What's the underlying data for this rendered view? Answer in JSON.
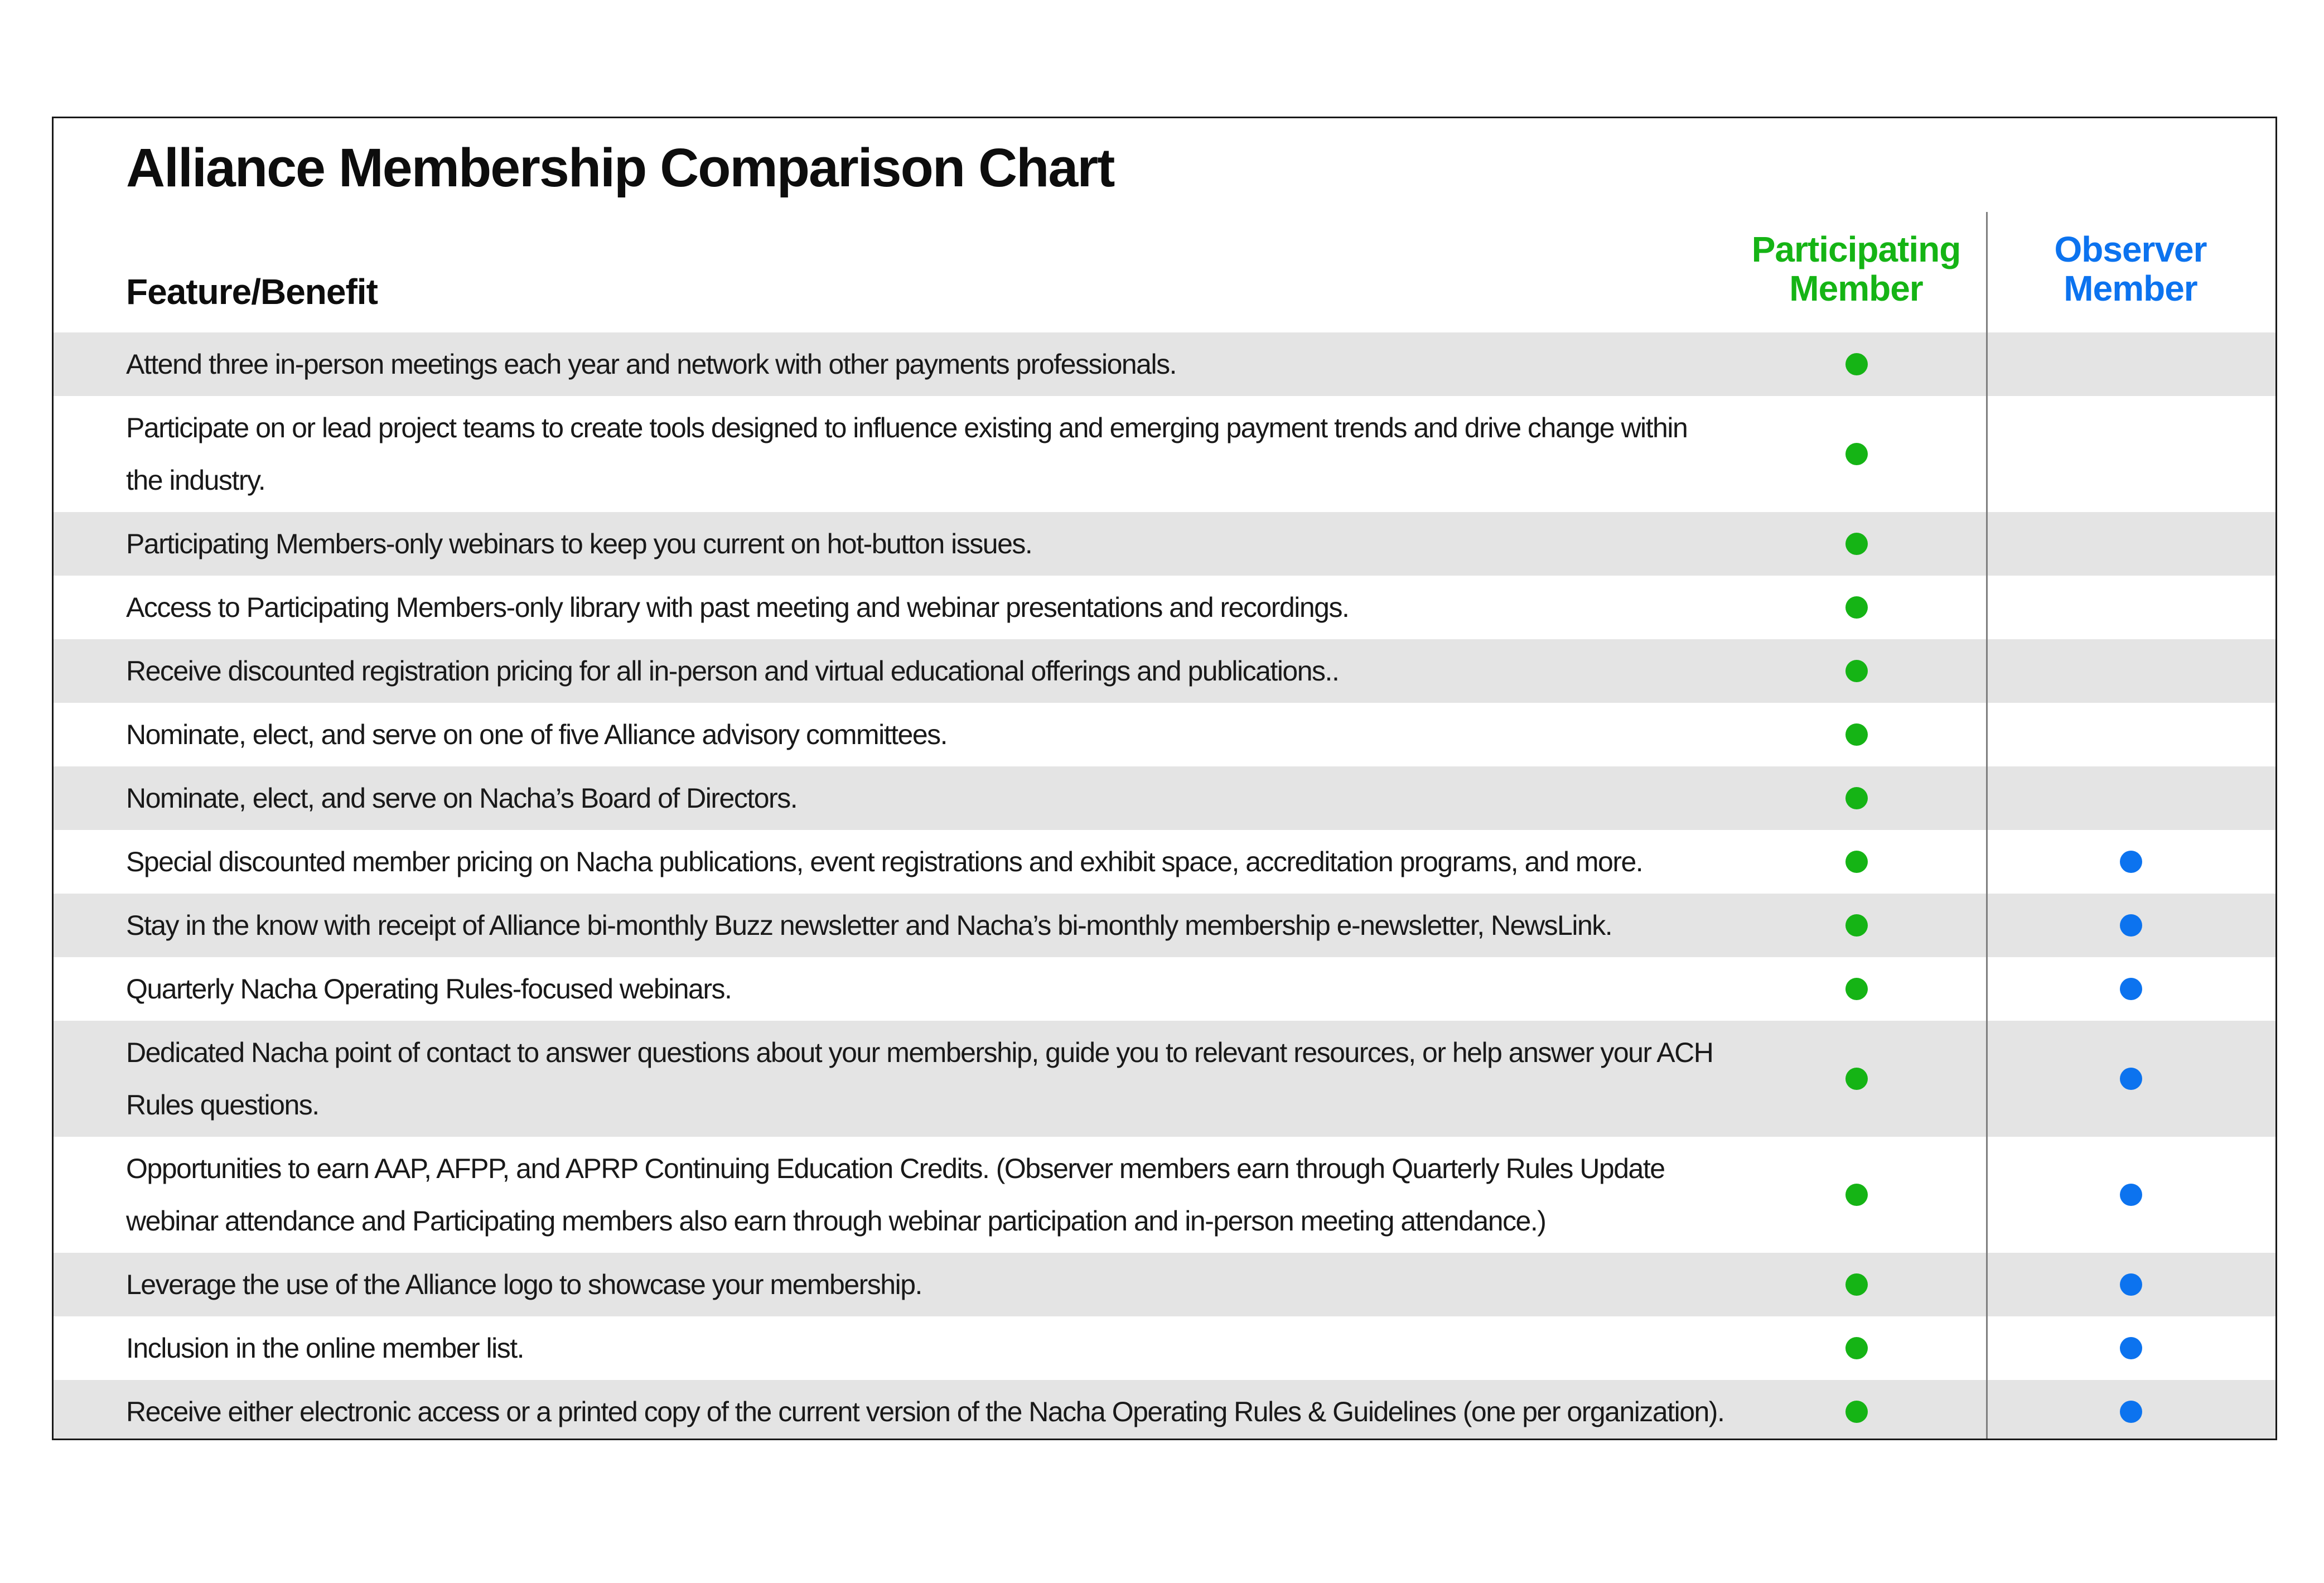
{
  "table": {
    "title": "Alliance Membership Comparison Chart",
    "feature_header": "Feature/Benefit",
    "columns": [
      {
        "id": "participating",
        "label": "Participating Member",
        "color": "#15b415"
      },
      {
        "id": "observer",
        "label": "Observer Member",
        "color": "#0c73ef"
      }
    ],
    "rows": [
      {
        "feature": "Attend three in-person meetings each year and network with other payments professionals.",
        "participating": true,
        "observer": false
      },
      {
        "feature": "Participate on or lead project teams to create tools designed to influence existing and emerging payment trends and drive change within the industry.",
        "participating": true,
        "observer": false
      },
      {
        "feature": "Participating Members-only webinars to keep you current on hot-button issues.",
        "participating": true,
        "observer": false
      },
      {
        "feature": "Access to Participating Members-only library with past meeting and webinar presentations and recordings.",
        "participating": true,
        "observer": false
      },
      {
        "feature": "Receive discounted registration pricing for all in-person and virtual educational offerings and publications..",
        "participating": true,
        "observer": false
      },
      {
        "feature": "Nominate, elect, and serve on one of five Alliance advisory committees.",
        "participating": true,
        "observer": false
      },
      {
        "feature": "Nominate, elect, and serve on Nacha’s Board of Directors.",
        "participating": true,
        "observer": false
      },
      {
        "feature": "Special discounted member pricing on Nacha publications, event registrations and exhibit space, accreditation programs, and more.",
        "participating": true,
        "observer": true
      },
      {
        "feature": "Stay in the know with receipt of Alliance bi-monthly Buzz newsletter and Nacha’s bi-monthly membership e-newsletter, NewsLink.",
        "participating": true,
        "observer": true
      },
      {
        "feature": "Quarterly Nacha Operating Rules-focused webinars.",
        "participating": true,
        "observer": true
      },
      {
        "feature": "Dedicated Nacha point of contact to answer questions about your membership, guide you to relevant resources, or help answer your ACH Rules questions.",
        "participating": true,
        "observer": true
      },
      {
        "feature": "Opportunities to earn AAP, AFPP, and APRP Continuing Education Credits. (Observer members earn through Quarterly Rules Update webinar attendance and Participating members also earn through webinar participation and in-person meeting attendance.)",
        "participating": true,
        "observer": true
      },
      {
        "feature": "Leverage the use of the Alliance logo to showcase your membership.",
        "participating": true,
        "observer": true
      },
      {
        "feature": "Inclusion in the online member list.",
        "participating": true,
        "observer": true
      },
      {
        "feature": "Receive either electronic access or a printed copy of the current version of the Nacha Operating Rules & Guidelines (one per organization).",
        "participating": true,
        "observer": true
      }
    ]
  },
  "colors": {
    "participating_green": "#15b415",
    "observer_blue": "#0c73ef",
    "row_alt_gray": "#e4e4e4",
    "outer_border": "#191919",
    "divider_gray": "#7f7f7f",
    "body_text": "#191919"
  }
}
